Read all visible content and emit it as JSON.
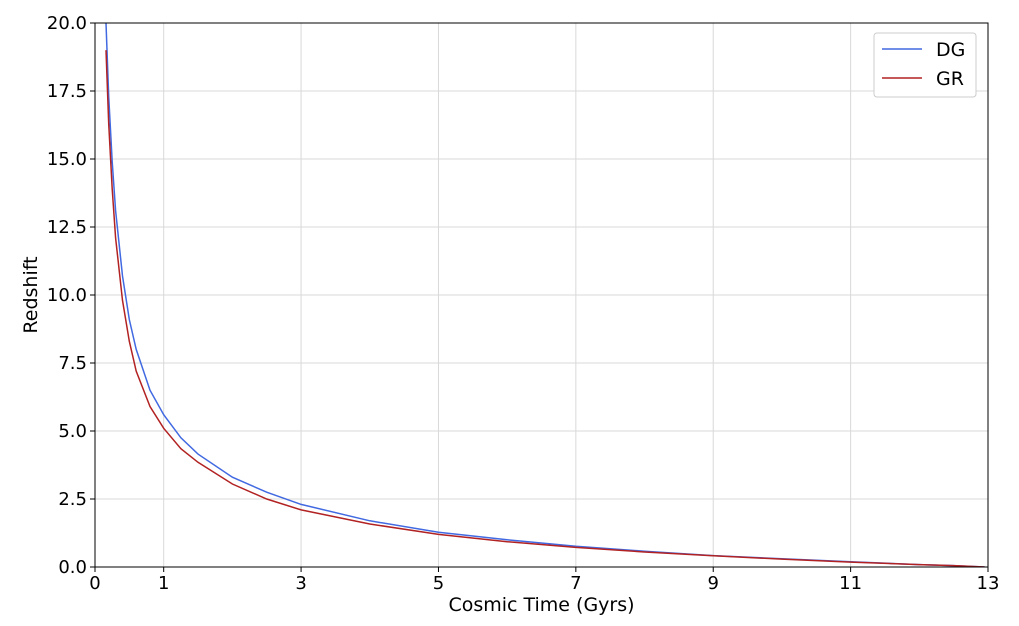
{
  "chart_data": {
    "type": "line",
    "title": "",
    "xlabel": "Cosmic Time (Gyrs)",
    "ylabel": "Redshift",
    "xlim": [
      0,
      13
    ],
    "ylim": [
      0,
      20
    ],
    "xticks": [
      0,
      1,
      3,
      5,
      7,
      9,
      11,
      13
    ],
    "yticks": [
      0.0,
      2.5,
      5.0,
      7.5,
      10.0,
      12.5,
      15.0,
      17.5,
      20.0
    ],
    "xtick_labels": [
      "0",
      "1",
      "3",
      "5",
      "7",
      "9",
      "11",
      "13"
    ],
    "ytick_labels": [
      "0.0",
      "2.5",
      "5.0",
      "7.5",
      "10.0",
      "12.5",
      "15.0",
      "17.5",
      "20.0"
    ],
    "grid": true,
    "legend_position": "top-right",
    "series": [
      {
        "name": "DG",
        "color": "#4169e1",
        "x": [
          0.16,
          0.2,
          0.25,
          0.3,
          0.4,
          0.5,
          0.6,
          0.8,
          1.0,
          1.25,
          1.5,
          2.0,
          2.5,
          3.0,
          4.0,
          5.0,
          6.0,
          7.0,
          8.0,
          9.0,
          10.0,
          11.0,
          12.0,
          12.5,
          12.95
        ],
        "y": [
          20.0,
          17.3,
          14.9,
          13.1,
          10.7,
          9.1,
          8.0,
          6.5,
          5.6,
          4.75,
          4.15,
          3.3,
          2.75,
          2.3,
          1.7,
          1.28,
          1.0,
          0.76,
          0.58,
          0.42,
          0.3,
          0.19,
          0.09,
          0.05,
          0.0
        ]
      },
      {
        "name": "GR",
        "color": "#b22222",
        "x": [
          0.16,
          0.2,
          0.25,
          0.3,
          0.4,
          0.5,
          0.6,
          0.8,
          1.0,
          1.25,
          1.5,
          2.0,
          2.5,
          3.0,
          4.0,
          5.0,
          6.0,
          7.0,
          8.0,
          9.0,
          10.0,
          11.0,
          12.0,
          12.5,
          12.95
        ],
        "y": [
          19.0,
          16.3,
          13.9,
          12.1,
          9.8,
          8.3,
          7.2,
          5.9,
          5.1,
          4.35,
          3.85,
          3.05,
          2.5,
          2.1,
          1.58,
          1.2,
          0.93,
          0.72,
          0.55,
          0.41,
          0.29,
          0.18,
          0.09,
          0.05,
          0.0
        ]
      }
    ]
  }
}
